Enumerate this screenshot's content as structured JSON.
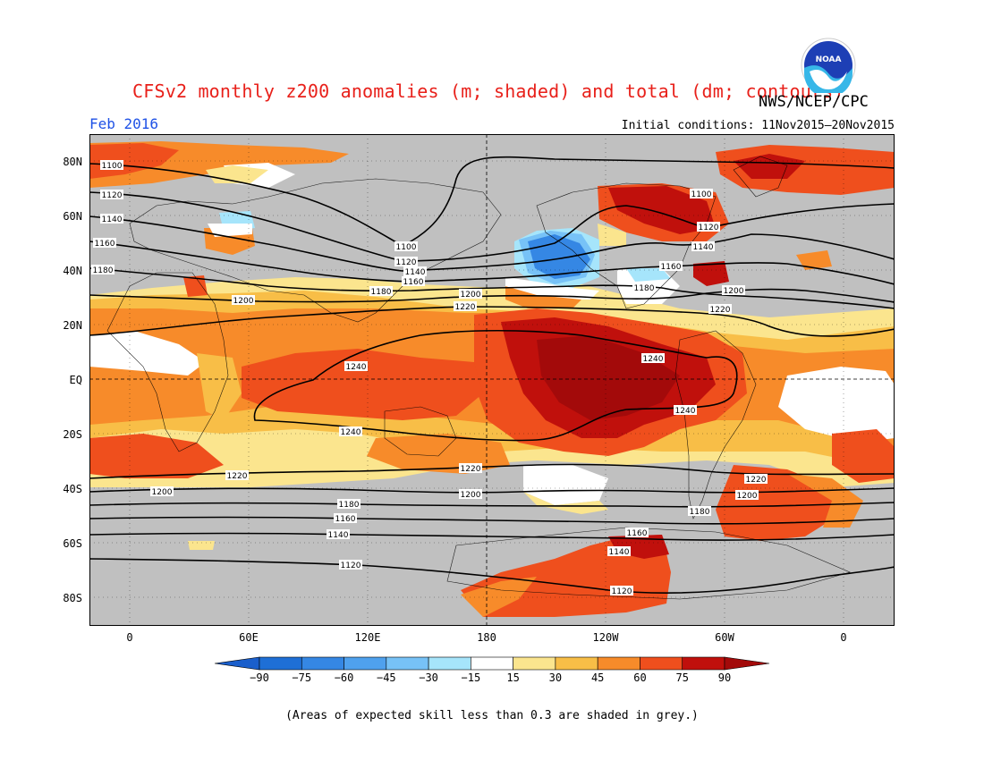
{
  "title": "CFSv2 monthly z200 anomalies (m; shaded) and total (dm; contours)",
  "agency": "NWS/NCEP/CPC",
  "logo_text": "NOAA",
  "valid_month": "Feb 2016",
  "initial_conditions": "Initial conditions: 11Nov2015–20Nov2015",
  "footnote": "(Areas of expected skill less than 0.3 are shaded in grey.)",
  "map": {
    "projection": "cylindrical equidistant",
    "lat_labels": [
      "80N",
      "60N",
      "40N",
      "20N",
      "EQ",
      "20S",
      "40S",
      "60S",
      "80S"
    ],
    "lon_labels": [
      "0",
      "60E",
      "120E",
      "180",
      "120W",
      "60W",
      "0"
    ],
    "reference_lines": [
      "EQ",
      "180"
    ],
    "grey_meaning": "expected skill < 0.3"
  },
  "colorbar": {
    "labels": [
      "−90",
      "−75",
      "−60",
      "−45",
      "−30",
      "−15",
      "15",
      "30",
      "45",
      "60",
      "75",
      "90"
    ],
    "colors": [
      "#1e6fd6",
      "#3587e4",
      "#4fa1ee",
      "#77c2f7",
      "#a6e5fb",
      "#ffffff",
      "#fbe58e",
      "#f8be47",
      "#f78b2a",
      "#ef4f1d",
      "#c0100c"
    ],
    "under_color": "#1a5fcc",
    "over_color": "#a30a0a",
    "grey": "#c0c0c0"
  },
  "contour_labels": [
    "1100",
    "1120",
    "1140",
    "1160",
    "1180",
    "1200",
    "1220",
    "1240"
  ]
}
